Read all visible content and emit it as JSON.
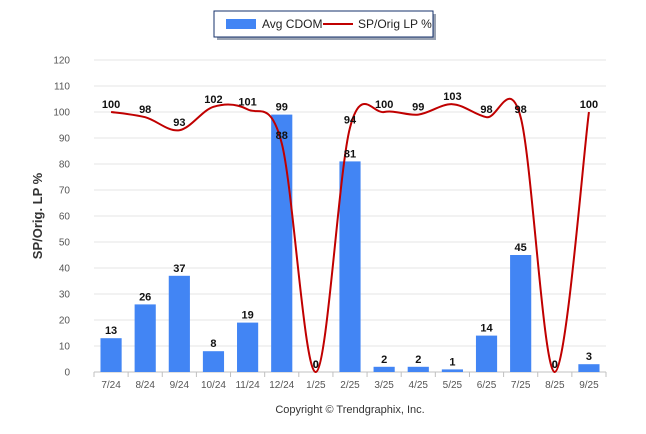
{
  "chart_data": {
    "type": "bar",
    "categories": [
      "7/24",
      "8/24",
      "9/24",
      "10/24",
      "11/24",
      "12/24",
      "1/25",
      "2/25",
      "3/25",
      "4/25",
      "5/25",
      "6/25",
      "7/25",
      "8/25",
      "9/25"
    ],
    "series": [
      {
        "name": "Avg CDOM",
        "kind": "bar",
        "color": "#4285f4",
        "values": [
          13,
          26,
          37,
          8,
          19,
          99,
          0,
          81,
          2,
          2,
          1,
          14,
          45,
          0,
          3
        ]
      },
      {
        "name": "SP/Orig LP %",
        "kind": "line",
        "color": "#c00000",
        "values": [
          100,
          98,
          93,
          102,
          101,
          88,
          0,
          94,
          100,
          99,
          103,
          98,
          98,
          0,
          100
        ]
      }
    ],
    "title": "",
    "xlabel": "",
    "ylabel": "SP/Orig. LP %",
    "ylim": [
      0,
      120
    ],
    "yticks": [
      0,
      10,
      20,
      30,
      40,
      50,
      60,
      70,
      80,
      90,
      100,
      110,
      120
    ],
    "legend": "top-center"
  },
  "footer": {
    "copyright": "Copyright © Trendgraphix, Inc."
  }
}
